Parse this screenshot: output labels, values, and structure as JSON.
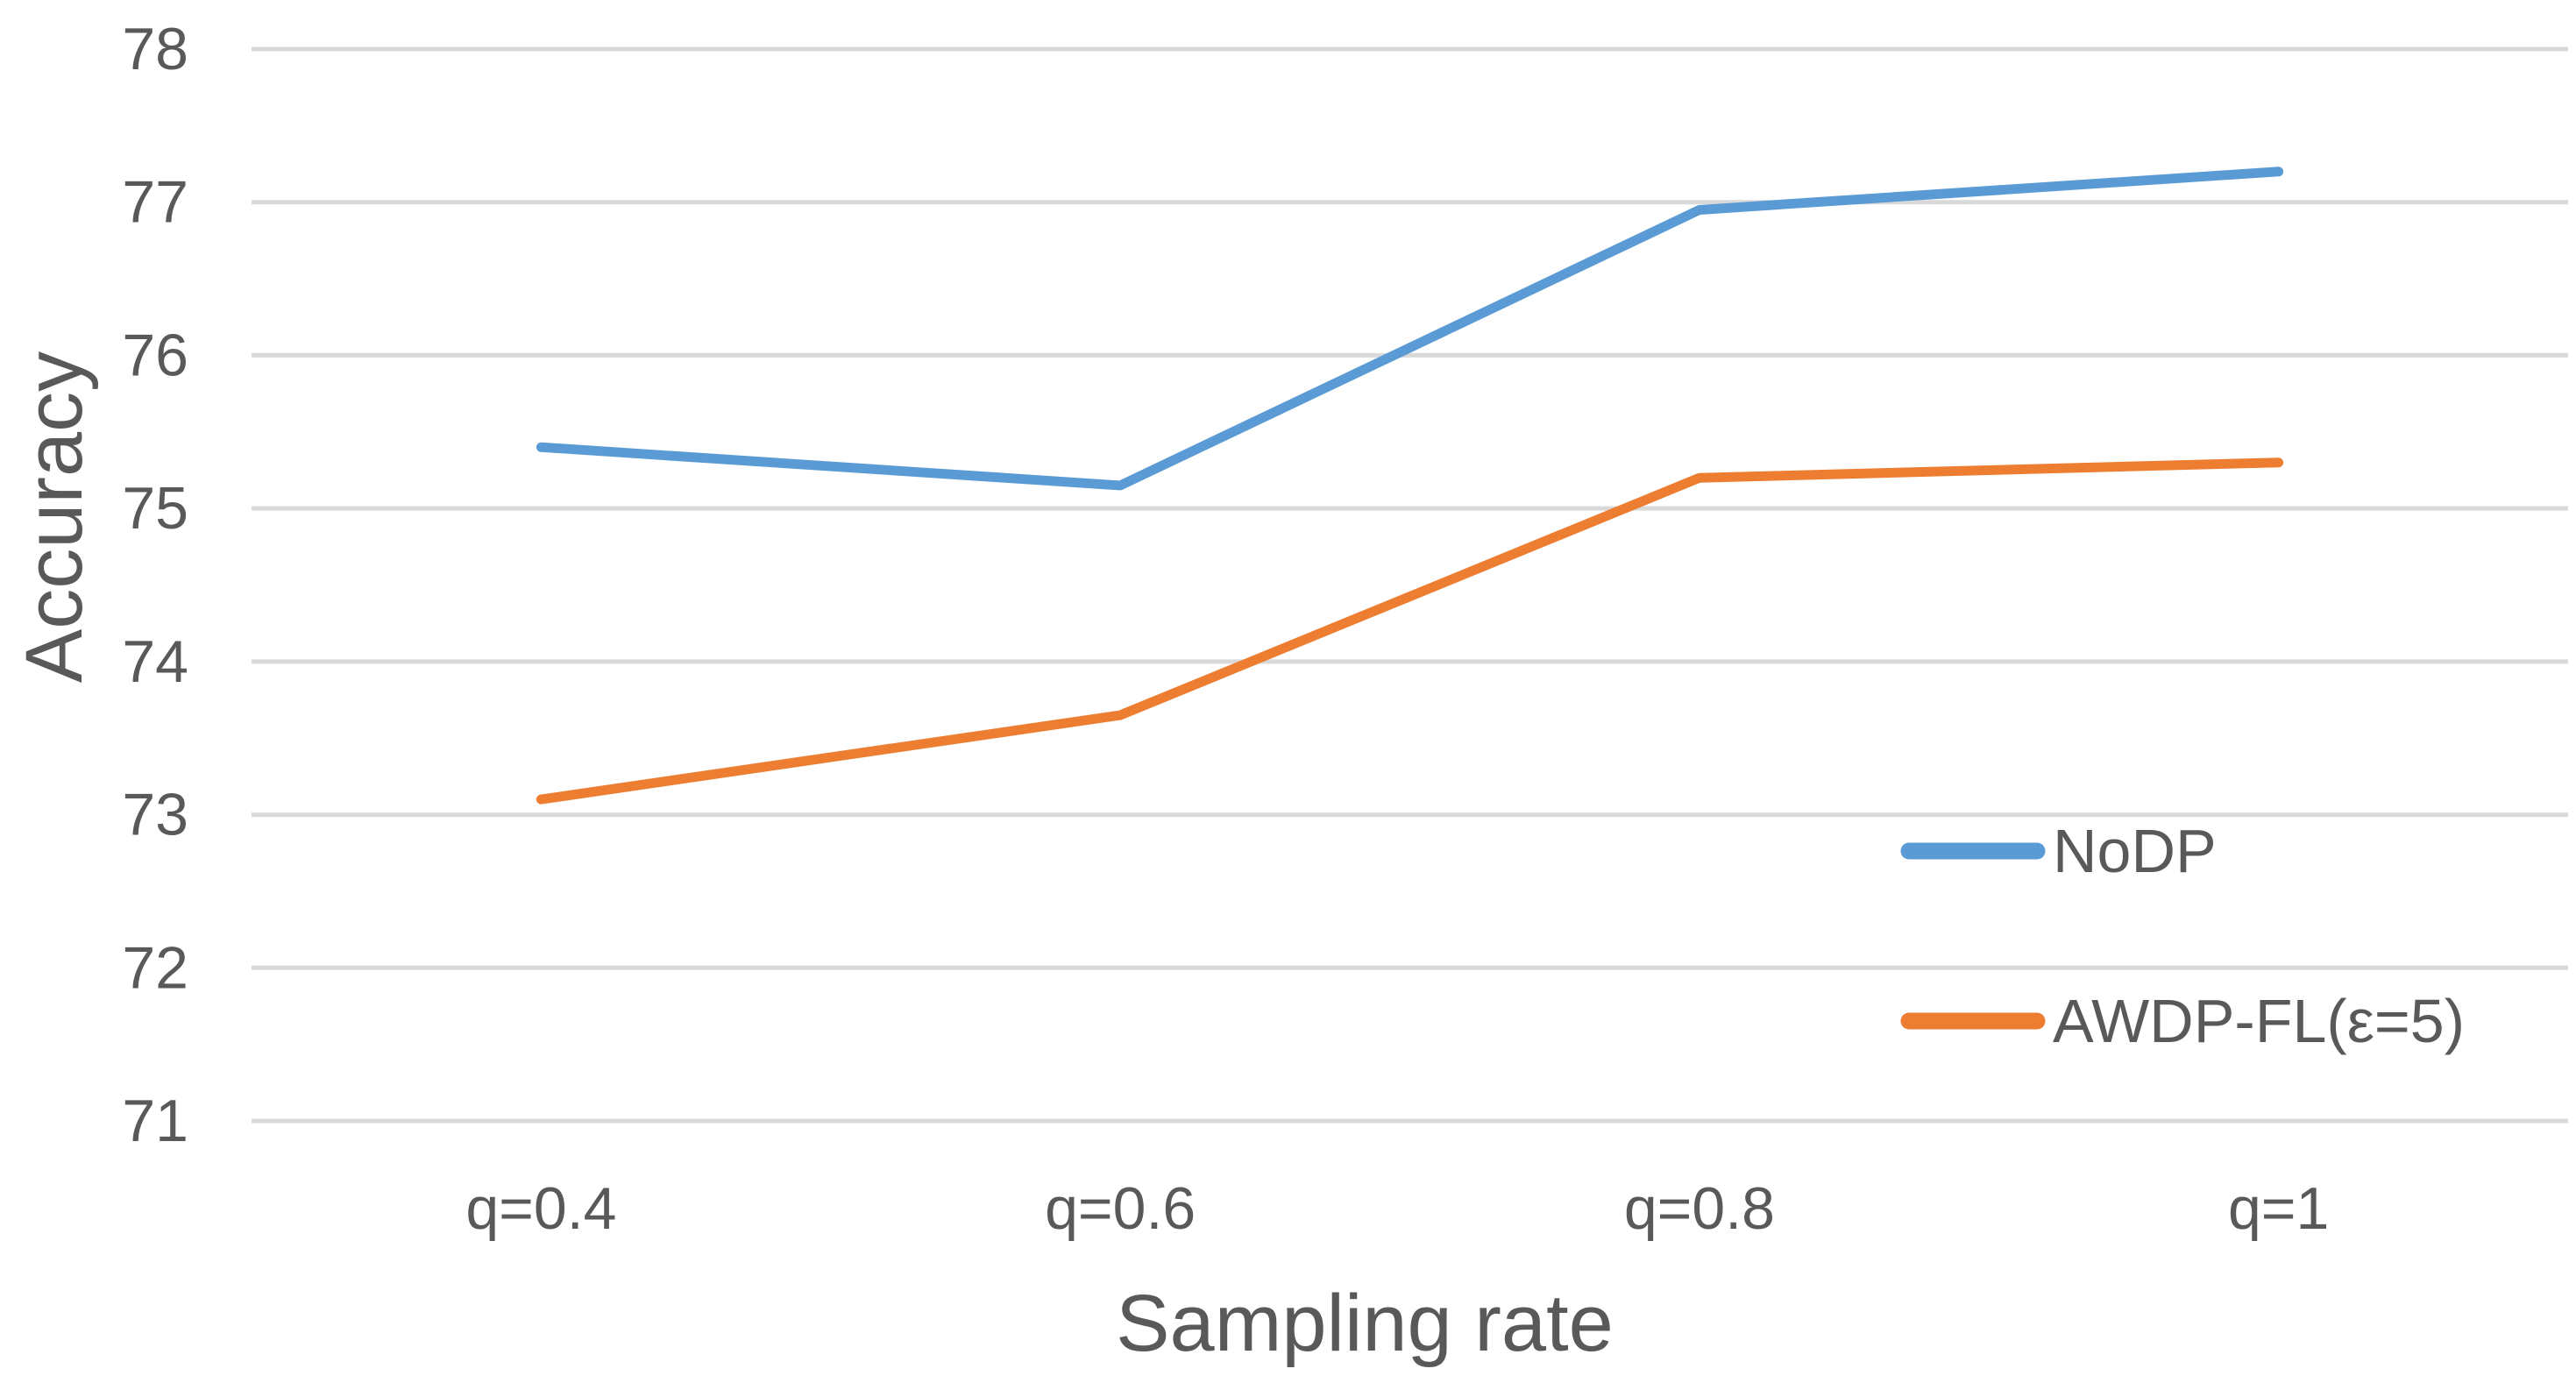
{
  "chart_data": {
    "type": "line",
    "title": "",
    "xlabel": "Sampling rate",
    "ylabel": "Accuracy",
    "categories": [
      "q=0.4",
      "q=0.6",
      "q=0.8",
      "q=1"
    ],
    "series": [
      {
        "name": "NoDP",
        "color": "#5B9BD5",
        "values": [
          75.4,
          75.15,
          76.95,
          77.2
        ]
      },
      {
        "name": "AWDP-FL(ε=5)",
        "color": "#ED7D31",
        "values": [
          73.1,
          73.65,
          75.2,
          75.3
        ]
      }
    ],
    "ylim": [
      71,
      78
    ],
    "yticks": [
      78,
      77,
      76,
      75,
      74,
      73,
      72,
      71
    ],
    "grid": true,
    "gridline_color": "#D9D9D9",
    "text_color": "#595959",
    "background": "#FFFFFF",
    "legend_position": "inside-right-lower"
  }
}
